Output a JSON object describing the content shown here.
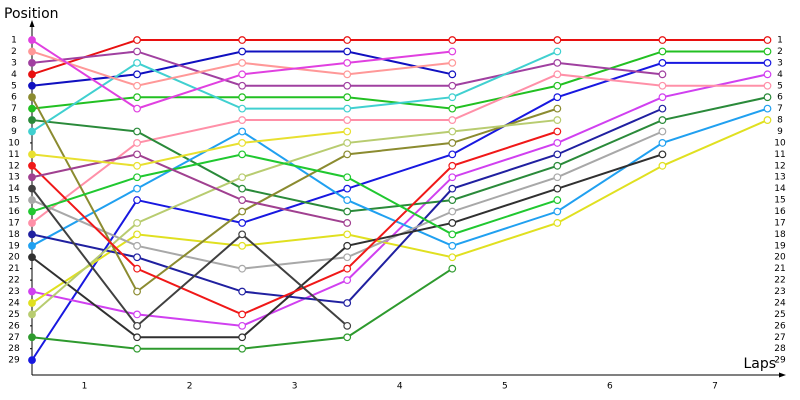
{
  "chart_data": {
    "type": "line",
    "y_label": "Position",
    "x_label": "Laps",
    "x": [
      0,
      1,
      2,
      3,
      4,
      5,
      6,
      7
    ],
    "xlim": [
      0,
      7.1
    ],
    "xticks": [
      {
        "value": 0.5,
        "label": "1"
      },
      {
        "value": 1.5,
        "label": "2"
      },
      {
        "value": 2.5,
        "label": "3"
      },
      {
        "value": 3.5,
        "label": "4"
      },
      {
        "value": 4.5,
        "label": "5"
      },
      {
        "value": 5.5,
        "label": "6"
      },
      {
        "value": 6.5,
        "label": "7"
      }
    ],
    "ylim": [
      30.3,
      0
    ],
    "yticks": [
      1,
      2,
      3,
      4,
      5,
      6,
      7,
      8,
      9,
      10,
      11,
      12,
      13,
      14,
      15,
      16,
      17,
      18,
      19,
      20,
      21,
      22,
      23,
      24,
      25,
      26,
      27,
      28,
      29
    ],
    "series": [
      {
        "color": "#e81010",
        "values": [
          4,
          1,
          1,
          1,
          1,
          1,
          1,
          1
        ]
      },
      {
        "color": "#22c022",
        "values": [
          7,
          6,
          6,
          6,
          7,
          5,
          2,
          2
        ]
      },
      {
        "color": "#1818e0",
        "values": [
          29,
          15,
          17,
          14,
          11,
          6,
          3,
          3
        ]
      },
      {
        "color": "#1010c0",
        "values": [
          5,
          4,
          2,
          2,
          4,
          null,
          null,
          null
        ]
      },
      {
        "color": "#d040f0",
        "values": [
          23,
          25,
          26,
          22,
          13,
          10,
          6,
          4
        ]
      },
      {
        "color": "#ff90a8",
        "values": [
          17,
          10,
          8,
          8,
          8,
          4,
          5,
          5
        ]
      },
      {
        "color": "#2e9a2e",
        "values": [
          27,
          28,
          28,
          27,
          21,
          null,
          null,
          null
        ]
      },
      {
        "color": "#2a8a3a",
        "values": [
          8,
          9,
          14,
          16,
          15,
          12,
          8,
          6
        ]
      },
      {
        "color": "#20a0f0",
        "values": [
          19,
          14,
          9,
          15,
          19,
          16,
          10,
          7
        ]
      },
      {
        "color": "#e0e020",
        "values": [
          24,
          18,
          19,
          18,
          20,
          17,
          12,
          8
        ]
      },
      {
        "color": "#a040a0",
        "values": [
          3,
          2,
          5,
          5,
          5,
          3,
          4,
          null
        ]
      },
      {
        "color": "#40d0d0",
        "values": [
          9,
          3,
          7,
          7,
          6,
          2,
          null,
          null
        ]
      },
      {
        "color": "#2020a0",
        "values": [
          18,
          20,
          23,
          24,
          14,
          11,
          7,
          null
        ]
      },
      {
        "color": "#a8a8a8",
        "values": [
          15,
          19,
          21,
          20,
          16,
          13,
          9,
          null
        ]
      },
      {
        "color": "#303030",
        "values": [
          20,
          27,
          27,
          19,
          17,
          14,
          11,
          null
        ]
      },
      {
        "color": "#8b8b30",
        "values": [
          6,
          23,
          16,
          11,
          10,
          7,
          null,
          null
        ]
      },
      {
        "color": "#b8cc70",
        "values": [
          25,
          17,
          13,
          10,
          9,
          8,
          null,
          null
        ]
      },
      {
        "color": "#f01818",
        "values": [
          12,
          21,
          25,
          21,
          12,
          9,
          null,
          null
        ]
      },
      {
        "color": "#20c830",
        "values": [
          16,
          13,
          11,
          13,
          18,
          15,
          null,
          null
        ]
      },
      {
        "color": "#ff9898",
        "values": [
          2,
          5,
          3,
          4,
          3,
          null,
          null,
          null
        ]
      },
      {
        "color": "#e040e0",
        "values": [
          1,
          7,
          4,
          3,
          2,
          null,
          null,
          null
        ]
      },
      {
        "color": "#a04090",
        "values": [
          13,
          11,
          15,
          17,
          null,
          null,
          null,
          null
        ]
      },
      {
        "color": "#e8e030",
        "values": [
          11,
          12,
          10,
          9,
          null,
          null,
          null,
          null
        ]
      },
      {
        "color": "#404040",
        "values": [
          14,
          26,
          18,
          26,
          null,
          null,
          null,
          null
        ]
      }
    ]
  }
}
